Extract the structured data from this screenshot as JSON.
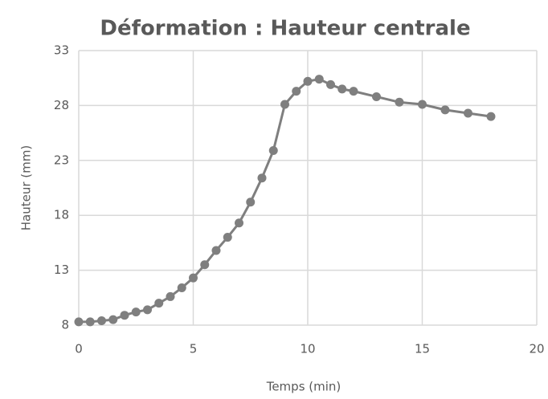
{
  "chart_data": {
    "type": "scatter",
    "title": "Déformation : Hauteur centrale",
    "x_label": "Temps (min)",
    "y_label": "Hauteur (mm)",
    "series": [
      {
        "name": "Hauteur",
        "color": "#7f7f7f",
        "x": [
          0,
          0.5,
          1,
          1.5,
          2,
          2.5,
          3,
          3.5,
          4,
          4.5,
          5,
          5.5,
          6,
          6.5,
          7,
          7.5,
          8,
          8.5,
          9,
          9.5,
          10,
          10.5,
          11,
          11.5,
          12,
          13,
          14,
          15,
          16,
          17,
          18
        ],
        "values": [
          8.3,
          8.3,
          8.4,
          8.5,
          8.9,
          9.2,
          9.4,
          10.0,
          10.6,
          11.4,
          12.3,
          13.5,
          14.8,
          16.0,
          17.3,
          19.2,
          21.4,
          23.9,
          28.1,
          29.3,
          30.2,
          30.4,
          29.9,
          29.5,
          29.3,
          28.8,
          28.3,
          28.1,
          27.6,
          27.3,
          27.0
        ]
      }
    ],
    "xlim": [
      0,
      20
    ],
    "xticks": [
      0,
      5,
      10,
      15,
      20
    ],
    "ylim": [
      8,
      33
    ],
    "yticks": [
      8,
      13,
      18,
      23,
      28,
      33
    ],
    "grid": true
  }
}
